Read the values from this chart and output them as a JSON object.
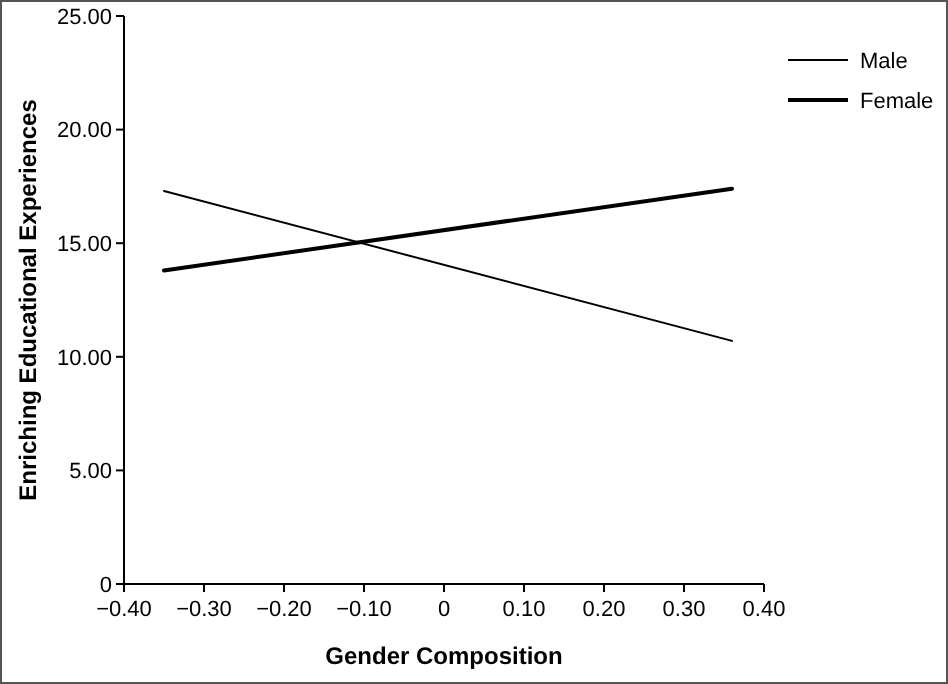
{
  "chart_data": {
    "type": "line",
    "xlabel": "Gender Composition",
    "ylabel": "Enriching Educational Experiences",
    "xlim": [
      -0.4,
      0.4
    ],
    "xticks": [
      {
        "value": -0.4,
        "label": "−0.40"
      },
      {
        "value": -0.3,
        "label": "−0.30"
      },
      {
        "value": -0.2,
        "label": "−0.20"
      },
      {
        "value": -0.1,
        "label": "−0.10"
      },
      {
        "value": 0,
        "label": "0"
      },
      {
        "value": 0.1,
        "label": "0.10"
      },
      {
        "value": 0.2,
        "label": "0.20"
      },
      {
        "value": 0.3,
        "label": "0.30"
      },
      {
        "value": 0.4,
        "label": "0.40"
      }
    ],
    "ylim": [
      0,
      25
    ],
    "yticks": [
      {
        "value": 0,
        "label": "0"
      },
      {
        "value": 5,
        "label": "5.00"
      },
      {
        "value": 10,
        "label": "10.00"
      },
      {
        "value": 15,
        "label": "15.00"
      },
      {
        "value": 20,
        "label": "20.00"
      },
      {
        "value": 25,
        "label": "25.00"
      }
    ],
    "x": [
      -0.35,
      0.36
    ],
    "legend": "top right",
    "grid": false,
    "marker": "none",
    "line_style": "solid",
    "series": [
      {
        "name": "Male",
        "color": "#000000",
        "values": [
          17.3,
          10.7
        ]
      },
      {
        "name": "Female",
        "color": "#000000",
        "values": [
          13.8,
          17.4
        ]
      }
    ]
  }
}
